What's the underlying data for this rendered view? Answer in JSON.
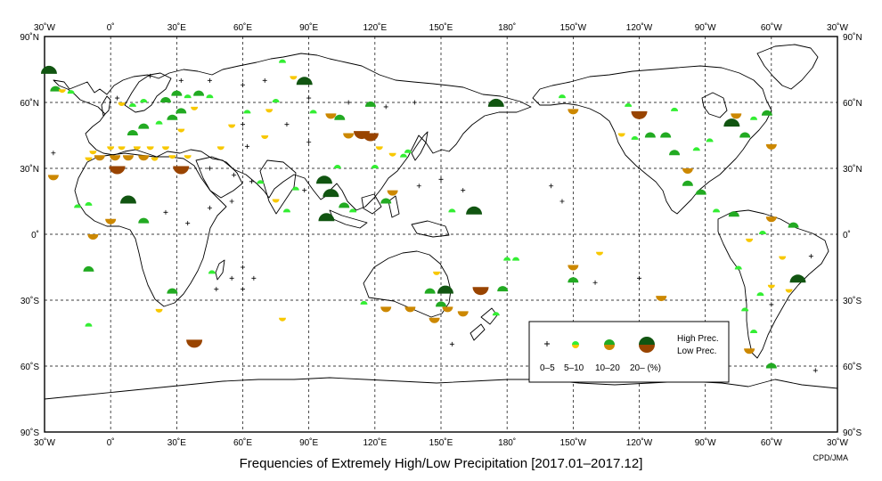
{
  "title": "Frequencies of Extremely High/Low Precipitation [2017.01–2017.12]",
  "credit": "CPD/JMA",
  "map": {
    "lon_ticks": [
      "30˚W",
      "0˚",
      "30˚E",
      "60˚E",
      "90˚E",
      "120˚E",
      "150˚E",
      "180˚",
      "150˚W",
      "120˚W",
      "90˚W",
      "60˚W",
      "30˚W"
    ],
    "lat_ticks_left": [
      "90˚N",
      "60˚N",
      "30˚N",
      "0˚",
      "30˚S",
      "60˚S",
      "90˚S"
    ],
    "lat_ticks_right": [
      "90˚N",
      "60˚N",
      "30˚N",
      "0˚",
      "30˚S",
      "60˚S",
      "90˚S"
    ],
    "lon_range_deg_east": [
      -30,
      330
    ],
    "lat_range": [
      -90,
      90
    ],
    "grid": "dashed every 30˚",
    "colors": {
      "high_5_10": "#33ee33",
      "high_10_20": "#22aa22",
      "high_20": "#115511",
      "low_5_10": "#f8c800",
      "low_10_20": "#cc8800",
      "low_20": "#994400",
      "land_outline": "#000000"
    }
  },
  "legend": {
    "classes": [
      "0–5",
      "5–10",
      "10–20",
      "20– (%)"
    ],
    "high_label": "High Prec.",
    "low_label": "Low Prec."
  },
  "stations": [
    {
      "lon": -28,
      "lat": 73,
      "t": "h",
      "c": 3
    },
    {
      "lon": -25,
      "lat": 65,
      "t": "h",
      "c": 2
    },
    {
      "lon": -22,
      "lat": 66,
      "t": "l",
      "c": 1
    },
    {
      "lon": -18,
      "lat": 64,
      "t": "h",
      "c": 1
    },
    {
      "lon": -8,
      "lat": 38,
      "t": "l",
      "c": 1
    },
    {
      "lon": -5,
      "lat": 36,
      "t": "l",
      "c": 2
    },
    {
      "lon": 0,
      "lat": 40,
      "t": "l",
      "c": 1
    },
    {
      "lon": 2,
      "lat": 36,
      "t": "l",
      "c": 2
    },
    {
      "lon": 5,
      "lat": 40,
      "t": "l",
      "c": 1
    },
    {
      "lon": 8,
      "lat": 36,
      "t": "l",
      "c": 2
    },
    {
      "lon": 12,
      "lat": 40,
      "t": "l",
      "c": 1
    },
    {
      "lon": 15,
      "lat": 36,
      "t": "l",
      "c": 2
    },
    {
      "lon": 18,
      "lat": 40,
      "t": "l",
      "c": 1
    },
    {
      "lon": 20,
      "lat": 35,
      "t": "l",
      "c": 1
    },
    {
      "lon": 25,
      "lat": 40,
      "t": "l",
      "c": 1
    },
    {
      "lon": 28,
      "lat": 36,
      "t": "l",
      "c": 1
    },
    {
      "lon": 32,
      "lat": 31,
      "t": "l",
      "c": 3
    },
    {
      "lon": 35,
      "lat": 36,
      "t": "l",
      "c": 1
    },
    {
      "lon": 3,
      "lat": 31,
      "t": "l",
      "c": 3
    },
    {
      "lon": -10,
      "lat": 35,
      "t": "l",
      "c": 1
    },
    {
      "lon": -26,
      "lat": 27,
      "t": "l",
      "c": 2
    },
    {
      "lon": 10,
      "lat": 45,
      "t": "h",
      "c": 2
    },
    {
      "lon": 15,
      "lat": 48,
      "t": "h",
      "c": 2
    },
    {
      "lon": 22,
      "lat": 50,
      "t": "h",
      "c": 1
    },
    {
      "lon": 28,
      "lat": 52,
      "t": "h",
      "c": 2
    },
    {
      "lon": 32,
      "lat": 55,
      "t": "h",
      "c": 2
    },
    {
      "lon": 25,
      "lat": 60,
      "t": "h",
      "c": 2
    },
    {
      "lon": 30,
      "lat": 63,
      "t": "h",
      "c": 2
    },
    {
      "lon": 35,
      "lat": 62,
      "t": "h",
      "c": 1
    },
    {
      "lon": 38,
      "lat": 58,
      "t": "l",
      "c": 1
    },
    {
      "lon": 15,
      "lat": 60,
      "t": "h",
      "c": 1
    },
    {
      "lon": 10,
      "lat": 58,
      "t": "h",
      "c": 1
    },
    {
      "lon": 5,
      "lat": 60,
      "t": "l",
      "c": 1
    },
    {
      "lon": 45,
      "lat": 62,
      "t": "h",
      "c": 1
    },
    {
      "lon": 40,
      "lat": 63,
      "t": "h",
      "c": 2
    },
    {
      "lon": 32,
      "lat": 48,
      "t": "l",
      "c": 1
    },
    {
      "lon": 50,
      "lat": 40,
      "t": "l",
      "c": 1
    },
    {
      "lon": 55,
      "lat": 50,
      "t": "l",
      "c": 1
    },
    {
      "lon": 62,
      "lat": 55,
      "t": "h",
      "c": 1
    },
    {
      "lon": 72,
      "lat": 57,
      "t": "l",
      "c": 1
    },
    {
      "lon": 70,
      "lat": 45,
      "t": "l",
      "c": 1
    },
    {
      "lon": 78,
      "lat": 78,
      "t": "h",
      "c": 1
    },
    {
      "lon": 83,
      "lat": 72,
      "t": "l",
      "c": 1
    },
    {
      "lon": 88,
      "lat": 68,
      "t": "h",
      "c": 3
    },
    {
      "lon": 75,
      "lat": 60,
      "t": "h",
      "c": 1
    },
    {
      "lon": 92,
      "lat": 55,
      "t": "h",
      "c": 1
    },
    {
      "lon": 100,
      "lat": 55,
      "t": "l",
      "c": 2
    },
    {
      "lon": 104,
      "lat": 52,
      "t": "h",
      "c": 2
    },
    {
      "lon": 108,
      "lat": 46,
      "t": "l",
      "c": 2
    },
    {
      "lon": 114,
      "lat": 47,
      "t": "l",
      "c": 3
    },
    {
      "lon": 118,
      "lat": 46,
      "t": "l",
      "c": 3
    },
    {
      "lon": 118,
      "lat": 58,
      "t": "h",
      "c": 2
    },
    {
      "lon": 122,
      "lat": 40,
      "t": "l",
      "c": 1
    },
    {
      "lon": 128,
      "lat": 37,
      "t": "l",
      "c": 1
    },
    {
      "lon": 133,
      "lat": 35,
      "t": "h",
      "c": 1
    },
    {
      "lon": 135,
      "lat": 37,
      "t": "h",
      "c": 1
    },
    {
      "lon": 120,
      "lat": 30,
      "t": "h",
      "c": 1
    },
    {
      "lon": 103,
      "lat": 30,
      "t": "h",
      "c": 1
    },
    {
      "lon": 97,
      "lat": 23,
      "t": "h",
      "c": 3
    },
    {
      "lon": 100,
      "lat": 17,
      "t": "h",
      "c": 3
    },
    {
      "lon": 106,
      "lat": 12,
      "t": "h",
      "c": 2
    },
    {
      "lon": 98,
      "lat": 6,
      "t": "h",
      "c": 3
    },
    {
      "lon": 110,
      "lat": 10,
      "t": "h",
      "c": 1
    },
    {
      "lon": 125,
      "lat": 14,
      "t": "h",
      "c": 2
    },
    {
      "lon": 128,
      "lat": 20,
      "t": "l",
      "c": 2
    },
    {
      "lon": 80,
      "lat": 10,
      "t": "h",
      "c": 1
    },
    {
      "lon": 84,
      "lat": 20,
      "t": "h",
      "c": 1
    },
    {
      "lon": 75,
      "lat": 16,
      "t": "l",
      "c": 1
    },
    {
      "lon": 68,
      "lat": 23,
      "t": "h",
      "c": 1
    },
    {
      "lon": 165,
      "lat": 9,
      "t": "h",
      "c": 3
    },
    {
      "lon": 175,
      "lat": 58,
      "t": "h",
      "c": 3
    },
    {
      "lon": 155,
      "lat": 10,
      "t": "h",
      "c": 1
    },
    {
      "lon": -10,
      "lat": 13,
      "t": "h",
      "c": 1
    },
    {
      "lon": -15,
      "lat": 12,
      "t": "h",
      "c": 1
    },
    {
      "lon": -8,
      "lat": 0,
      "t": "l",
      "c": 2
    },
    {
      "lon": 8,
      "lat": 14,
      "t": "h",
      "c": 3
    },
    {
      "lon": 15,
      "lat": 5,
      "t": "h",
      "c": 2
    },
    {
      "lon": 0,
      "lat": 7,
      "t": "l",
      "c": 2
    },
    {
      "lon": -10,
      "lat": -17,
      "t": "h",
      "c": 2
    },
    {
      "lon": -10,
      "lat": -42,
      "t": "h",
      "c": 1
    },
    {
      "lon": 28,
      "lat": -27,
      "t": "h",
      "c": 2
    },
    {
      "lon": 22,
      "lat": -34,
      "t": "l",
      "c": 1
    },
    {
      "lon": 38,
      "lat": -48,
      "t": "l",
      "c": 3
    },
    {
      "lon": 46,
      "lat": -18,
      "t": "h",
      "c": 1
    },
    {
      "lon": 78,
      "lat": -38,
      "t": "l",
      "c": 1
    },
    {
      "lon": 115,
      "lat": -32,
      "t": "h",
      "c": 1
    },
    {
      "lon": 125,
      "lat": -33,
      "t": "l",
      "c": 2
    },
    {
      "lon": 136,
      "lat": -33,
      "t": "l",
      "c": 2
    },
    {
      "lon": 145,
      "lat": -27,
      "t": "h",
      "c": 2
    },
    {
      "lon": 150,
      "lat": -33,
      "t": "h",
      "c": 2
    },
    {
      "lon": 153,
      "lat": -33,
      "t": "l",
      "c": 2
    },
    {
      "lon": 147,
      "lat": -38,
      "t": "l",
      "c": 2
    },
    {
      "lon": 168,
      "lat": -24,
      "t": "l",
      "c": 3
    },
    {
      "lon": 175,
      "lat": -37,
      "t": "h",
      "c": 1
    },
    {
      "lon": 178,
      "lat": -26,
      "t": "h",
      "c": 2
    },
    {
      "lon": 160,
      "lat": -35,
      "t": "l",
      "c": 2
    },
    {
      "lon": 152,
      "lat": -27,
      "t": "h",
      "c": 3
    },
    {
      "lon": 148,
      "lat": -17,
      "t": "l",
      "c": 1
    },
    {
      "lon": 180,
      "lat": -12,
      "t": "h",
      "c": 1
    },
    {
      "lon": 184,
      "lat": -12,
      "t": "h",
      "c": 1
    },
    {
      "lon": 210,
      "lat": -14,
      "t": "l",
      "c": 2
    },
    {
      "lon": 210,
      "lat": -22,
      "t": "h",
      "c": 2
    },
    {
      "lon": 222,
      "lat": -8,
      "t": "l",
      "c": 1
    },
    {
      "lon": 250,
      "lat": -28,
      "t": "l",
      "c": 2
    },
    {
      "lon": 205,
      "lat": 62,
      "t": "h",
      "c": 1
    },
    {
      "lon": 210,
      "lat": 57,
      "t": "l",
      "c": 2
    },
    {
      "lon": 235,
      "lat": 58,
      "t": "h",
      "c": 1
    },
    {
      "lon": 240,
      "lat": 56,
      "t": "l",
      "c": 3
    },
    {
      "lon": 232,
      "lat": 46,
      "t": "l",
      "c": 1
    },
    {
      "lon": 238,
      "lat": 43,
      "t": "h",
      "c": 1
    },
    {
      "lon": 245,
      "lat": 44,
      "t": "h",
      "c": 2
    },
    {
      "lon": 252,
      "lat": 44,
      "t": "h",
      "c": 2
    },
    {
      "lon": 256,
      "lat": 36,
      "t": "h",
      "c": 2
    },
    {
      "lon": 262,
      "lat": 30,
      "t": "l",
      "c": 2
    },
    {
      "lon": 266,
      "lat": 38,
      "t": "h",
      "c": 1
    },
    {
      "lon": 272,
      "lat": 42,
      "t": "h",
      "c": 1
    },
    {
      "lon": 282,
      "lat": 49,
      "t": "h",
      "c": 3
    },
    {
      "lon": 288,
      "lat": 44,
      "t": "h",
      "c": 2
    },
    {
      "lon": 292,
      "lat": 52,
      "t": "h",
      "c": 1
    },
    {
      "lon": 298,
      "lat": 54,
      "t": "h",
      "c": 2
    },
    {
      "lon": 284,
      "lat": 55,
      "t": "l",
      "c": 2
    },
    {
      "lon": 300,
      "lat": 41,
      "t": "l",
      "c": 2
    },
    {
      "lon": 256,
      "lat": 56,
      "t": "h",
      "c": 1
    },
    {
      "lon": 262,
      "lat": 22,
      "t": "h",
      "c": 2
    },
    {
      "lon": 268,
      "lat": 18,
      "t": "h",
      "c": 2
    },
    {
      "lon": 275,
      "lat": 10,
      "t": "h",
      "c": 1
    },
    {
      "lon": 283,
      "lat": 8,
      "t": "h",
      "c": 2
    },
    {
      "lon": 290,
      "lat": -2,
      "t": "l",
      "c": 1
    },
    {
      "lon": 296,
      "lat": 0,
      "t": "h",
      "c": 1
    },
    {
      "lon": 305,
      "lat": -10,
      "t": "l",
      "c": 1
    },
    {
      "lon": 312,
      "lat": -22,
      "t": "h",
      "c": 3
    },
    {
      "lon": 308,
      "lat": -25,
      "t": "l",
      "c": 1
    },
    {
      "lon": 300,
      "lat": -23,
      "t": "l",
      "c": 1
    },
    {
      "lon": 295,
      "lat": -28,
      "t": "h",
      "c": 1
    },
    {
      "lon": 288,
      "lat": -35,
      "t": "h",
      "c": 1
    },
    {
      "lon": 292,
      "lat": -45,
      "t": "h",
      "c": 1
    },
    {
      "lon": 290,
      "lat": -52,
      "t": "l",
      "c": 2
    },
    {
      "lon": 300,
      "lat": -61,
      "t": "h",
      "c": 2
    },
    {
      "lon": 285,
      "lat": -16,
      "t": "h",
      "c": 1
    },
    {
      "lon": 300,
      "lat": 8,
      "t": "l",
      "c": 2
    },
    {
      "lon": 310,
      "lat": 3,
      "t": "h",
      "c": 2
    }
  ],
  "plus_marks": [
    {
      "lon": -26,
      "lat": 37
    },
    {
      "lon": 3,
      "lat": 62
    },
    {
      "lon": 18,
      "lat": 72
    },
    {
      "lon": 32,
      "lat": 70
    },
    {
      "lon": 45,
      "lat": 70
    },
    {
      "lon": 60,
      "lat": 68
    },
    {
      "lon": 70,
      "lat": 70
    },
    {
      "lon": 90,
      "lat": 62
    },
    {
      "lon": 108,
      "lat": 60
    },
    {
      "lon": 125,
      "lat": 58
    },
    {
      "lon": 138,
      "lat": 60
    },
    {
      "lon": 60,
      "lat": 50
    },
    {
      "lon": 80,
      "lat": 50
    },
    {
      "lon": 90,
      "lat": 42
    },
    {
      "lon": 62,
      "lat": 40
    },
    {
      "lon": 45,
      "lat": 30
    },
    {
      "lon": 56,
      "lat": 27
    },
    {
      "lon": 64,
      "lat": 24
    },
    {
      "lon": 55,
      "lat": 15
    },
    {
      "lon": 45,
      "lat": 12
    },
    {
      "lon": 25,
      "lat": 10
    },
    {
      "lon": 35,
      "lat": 5
    },
    {
      "lon": 60,
      "lat": -15
    },
    {
      "lon": 65,
      "lat": -20
    },
    {
      "lon": 55,
      "lat": -20
    },
    {
      "lon": 48,
      "lat": -25
    },
    {
      "lon": 60,
      "lat": -25
    },
    {
      "lon": 88,
      "lat": 20
    },
    {
      "lon": 140,
      "lat": 22
    },
    {
      "lon": 150,
      "lat": 25
    },
    {
      "lon": 160,
      "lat": 20
    },
    {
      "lon": 200,
      "lat": 22
    },
    {
      "lon": 205,
      "lat": 15
    },
    {
      "lon": 220,
      "lat": -22
    },
    {
      "lon": 240,
      "lat": -20
    },
    {
      "lon": 155,
      "lat": -50
    },
    {
      "lon": 320,
      "lat": -62
    },
    {
      "lon": 318,
      "lat": -10
    },
    {
      "lon": 300,
      "lat": -32
    }
  ]
}
